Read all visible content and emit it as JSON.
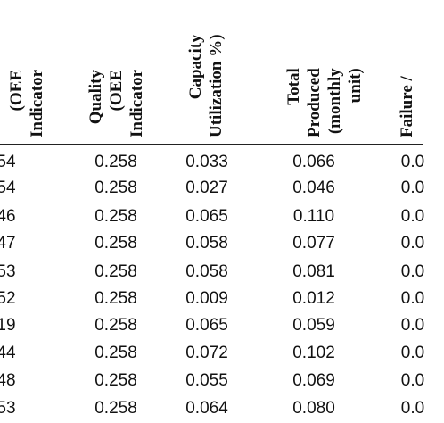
{
  "table": {
    "headers": [
      {
        "text": "(OEE\nIndicator"
      },
      {
        "text": "Quality\n(OEE\nIndicator"
      },
      {
        "text": "Capacity\nUtilization %)"
      },
      {
        "text": "Total\nProduced\n(monthly\nunit)"
      },
      {
        "text": "Failure /"
      }
    ],
    "rows": [
      [
        "54",
        "0.258",
        "0.033",
        "0.066",
        "0.0"
      ],
      [
        "54",
        "0.258",
        "0.027",
        "0.046",
        "0.0"
      ],
      [
        "46",
        "0.258",
        "0.065",
        "0.110",
        "0.0"
      ],
      [
        "47",
        "0.258",
        "0.058",
        "0.077",
        "0.0"
      ],
      [
        "53",
        "0.258",
        "0.058",
        "0.081",
        "0.0"
      ],
      [
        "52",
        "0.258",
        "0.009",
        "0.012",
        "0.0"
      ],
      [
        "19",
        "0.258",
        "0.065",
        "0.059",
        "0.0"
      ],
      [
        "44",
        "0.258",
        "0.072",
        "0.102",
        "0.0"
      ],
      [
        "48",
        "0.258",
        "0.055",
        "0.069",
        "0.0"
      ],
      [
        "53",
        "0.258",
        "0.064",
        "0.080",
        "0.0"
      ]
    ]
  }
}
